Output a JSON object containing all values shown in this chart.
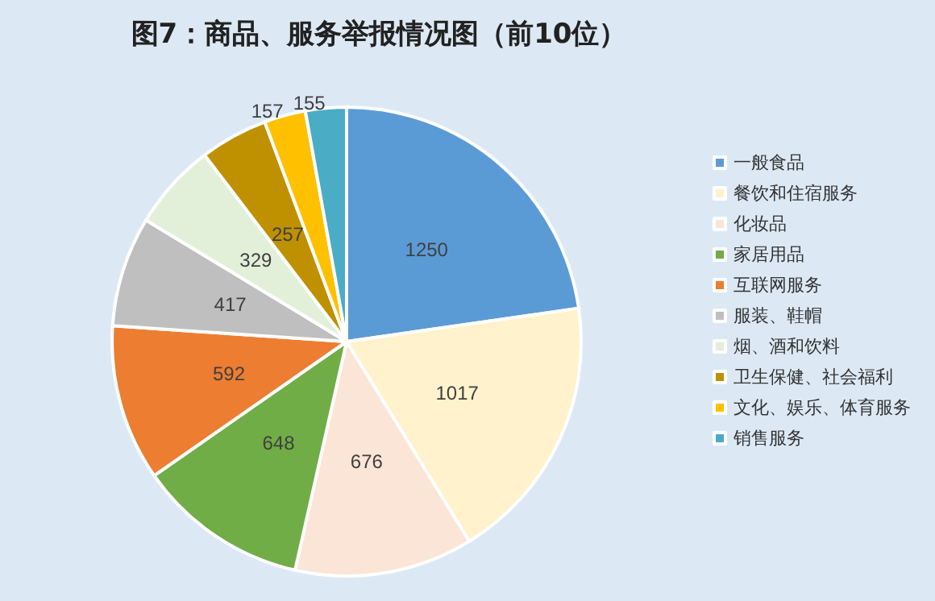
{
  "chart_data": {
    "type": "pie",
    "title": "图7：商品、服务举报情况图（前10位）",
    "categories": [
      "一般食品",
      "餐饮和住宿服务",
      "化妆品",
      "家居用品",
      "互联网服务",
      "服装、鞋帽",
      "烟、酒和饮料",
      "卫生保健、社会福利",
      "文化、娱乐、体育服务",
      "销售服务"
    ],
    "values": [
      1250,
      1017,
      676,
      648,
      592,
      417,
      329,
      257,
      157,
      155
    ],
    "colors": [
      "#5b9bd5",
      "#fff2cc",
      "#fbe5d6",
      "#70ad47",
      "#ed7d31",
      "#bfbfbf",
      "#e2f0d9",
      "#bf9000",
      "#ffc000",
      "#4bacc6"
    ],
    "data_labels": true,
    "legend": "right"
  }
}
